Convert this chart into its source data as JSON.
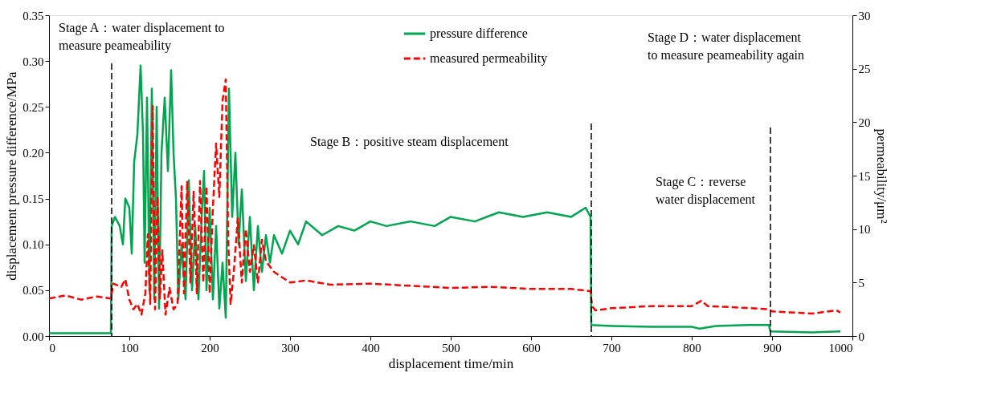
{
  "chart_data": {
    "type": "line",
    "xlabel": "displacement time/min",
    "ylabel": "displacement pressure difference/MPa",
    "y2label": "permeability/μm²",
    "xlim": [
      0,
      1000
    ],
    "xticks": [
      0,
      100,
      200,
      300,
      400,
      500,
      600,
      700,
      800,
      900,
      1000
    ],
    "ylim": [
      0,
      0.35
    ],
    "yticks": [
      {
        "value": 0,
        "label": "0.00"
      },
      0.05,
      {
        "value": 0.1,
        "label": "0.10"
      },
      0.15,
      {
        "value": 0.2,
        "label": "0.20"
      },
      0.25,
      {
        "value": 0.3,
        "label": "0.30"
      },
      0.35
    ],
    "y2lim": [
      0,
      30
    ],
    "y2ticks": [
      0,
      5,
      10,
      15,
      20,
      25,
      30
    ],
    "grid": false,
    "legend": "top",
    "marker": "none",
    "series": [
      {
        "name": "pressure difference",
        "color": "#00a550",
        "line_style": "solid",
        "x": [
          0,
          77,
          78,
          82,
          88,
          92,
          95,
          100,
          103,
          106,
          110,
          114,
          117,
          119,
          122,
          125,
          128,
          131,
          134,
          137,
          140,
          144,
          148,
          152,
          155,
          158,
          161,
          165,
          170,
          174,
          178,
          182,
          186,
          190,
          193,
          196,
          200,
          204,
          208,
          212,
          216,
          220,
          224,
          228,
          232,
          236,
          240,
          245,
          250,
          255,
          260,
          265,
          270,
          275,
          280,
          290,
          300,
          310,
          320,
          340,
          360,
          380,
          400,
          420,
          450,
          480,
          500,
          530,
          560,
          590,
          620,
          650,
          668,
          674,
          675,
          700,
          750,
          800,
          810,
          830,
          870,
          896,
          898,
          950,
          985
        ],
        "values": [
          0.003,
          0.003,
          0.12,
          0.13,
          0.12,
          0.1,
          0.15,
          0.14,
          0.09,
          0.19,
          0.22,
          0.295,
          0.22,
          0.08,
          0.26,
          0.05,
          0.27,
          0.04,
          0.25,
          0.03,
          0.2,
          0.26,
          0.18,
          0.29,
          0.2,
          0.15,
          0.04,
          0.1,
          0.04,
          0.17,
          0.05,
          0.12,
          0.04,
          0.13,
          0.18,
          0.05,
          0.14,
          0.04,
          0.12,
          0.03,
          0.08,
          0.02,
          0.27,
          0.13,
          0.2,
          0.1,
          0.16,
          0.06,
          0.13,
          0.05,
          0.12,
          0.07,
          0.11,
          0.08,
          0.11,
          0.09,
          0.115,
          0.1,
          0.125,
          0.11,
          0.12,
          0.115,
          0.125,
          0.12,
          0.125,
          0.12,
          0.13,
          0.125,
          0.135,
          0.13,
          0.135,
          0.13,
          0.14,
          0.13,
          0.012,
          0.011,
          0.01,
          0.01,
          0.008,
          0.011,
          0.012,
          0.012,
          0.005,
          0.004,
          0.005
        ]
      },
      {
        "name": "measured permeability",
        "color": "#ff0000",
        "line_style": "dashed",
        "axis": "y2",
        "x": [
          0,
          20,
          40,
          60,
          77,
          80,
          90,
          95,
          100,
          105,
          110,
          115,
          120,
          123,
          126,
          129,
          132,
          135,
          138,
          141,
          145,
          150,
          155,
          160,
          165,
          168,
          172,
          176,
          180,
          184,
          188,
          192,
          196,
          200,
          204,
          208,
          212,
          216,
          220,
          223,
          226,
          230,
          235,
          240,
          245,
          250,
          255,
          260,
          265,
          270,
          280,
          290,
          300,
          320,
          350,
          400,
          450,
          500,
          550,
          600,
          650,
          674,
          676,
          680,
          700,
          750,
          800,
          812,
          820,
          850,
          897,
          900,
          950,
          980,
          985
        ],
        "values": [
          3.5,
          3.8,
          3.4,
          3.7,
          3.5,
          4.9,
          4.6,
          5.3,
          3.4,
          2.5,
          3.0,
          2.0,
          4.0,
          9.5,
          3.0,
          21.5,
          2.5,
          13.0,
          3.5,
          8.0,
          2.0,
          4.5,
          2.5,
          3.0,
          14.0,
          4.0,
          14.5,
          5.0,
          13.5,
          4.0,
          14.5,
          5.0,
          14.0,
          4.0,
          12.0,
          18.0,
          13.0,
          22.0,
          24.0,
          9.0,
          3.0,
          6.0,
          11.0,
          5.0,
          10.0,
          6.0,
          8.5,
          5.0,
          9.0,
          7.0,
          6.0,
          5.5,
          5.0,
          5.2,
          4.8,
          4.9,
          4.7,
          4.5,
          4.6,
          4.4,
          4.4,
          4.2,
          2.8,
          2.4,
          2.6,
          2.8,
          2.8,
          3.3,
          2.8,
          2.7,
          2.5,
          2.3,
          2.1,
          2.4,
          2.2
        ]
      }
    ],
    "ref_lines": [
      {
        "axis": "x",
        "value": 78,
        "color": "#000000",
        "line_style": "dashed"
      },
      {
        "axis": "x",
        "value": 675,
        "color": "#000000",
        "line_style": "dashed"
      },
      {
        "axis": "x",
        "value": 898,
        "color": "#000000",
        "line_style": "dashed"
      }
    ],
    "annotations": [
      "Stage A：water displacement to\nmeasure peameability",
      "Stage B：positive steam displacement",
      "Stage C：reverse\nwater displacement",
      "Stage D：water displacement\nto measure peameability again"
    ]
  }
}
